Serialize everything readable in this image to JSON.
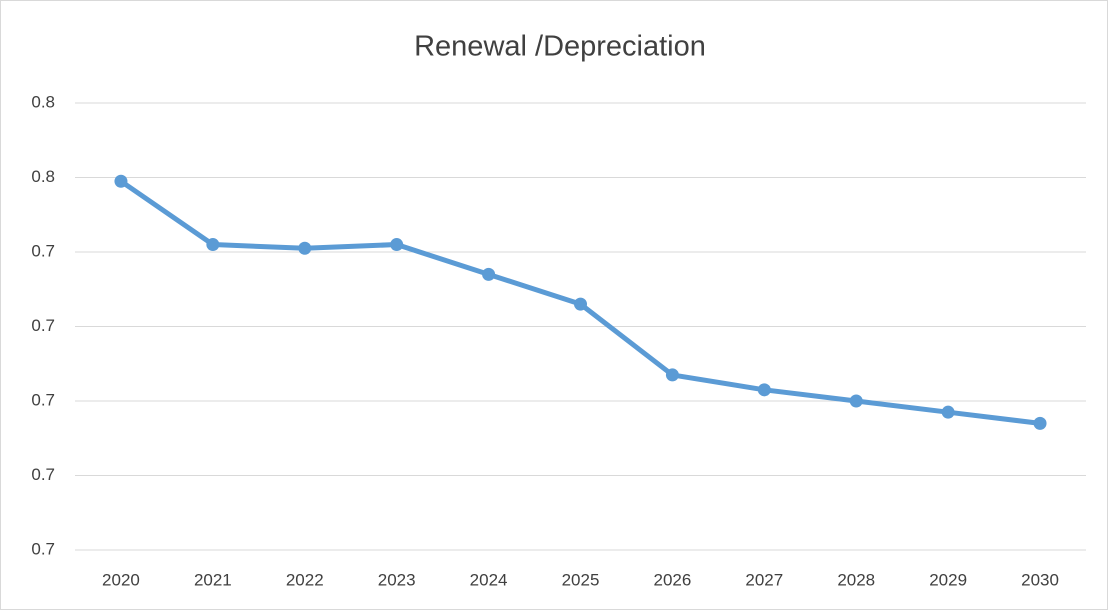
{
  "chart_data": {
    "type": "line",
    "title": "Renewal /Depreciation",
    "categories": [
      "2020",
      "2021",
      "2022",
      "2023",
      "2024",
      "2025",
      "2026",
      "2027",
      "2028",
      "2029",
      "2030"
    ],
    "series": [
      {
        "name": "Renewal /Depreciation",
        "color": "#5b9bd5",
        "values": [
          0.759,
          0.742,
          0.741,
          0.742,
          0.734,
          0.726,
          0.707,
          0.703,
          0.7,
          0.697,
          0.694
        ]
      }
    ],
    "ylim": [
      0.66,
      0.78
    ],
    "yticks": [
      {
        "value": 0.66,
        "label": "0.7"
      },
      {
        "value": 0.68,
        "label": "0.7"
      },
      {
        "value": 0.7,
        "label": "0.7"
      },
      {
        "value": 0.72,
        "label": "0.7"
      },
      {
        "value": 0.74,
        "label": "0.7"
      },
      {
        "value": 0.76,
        "label": "0.8"
      },
      {
        "value": 0.78,
        "label": "0.8"
      }
    ],
    "grid": true
  }
}
